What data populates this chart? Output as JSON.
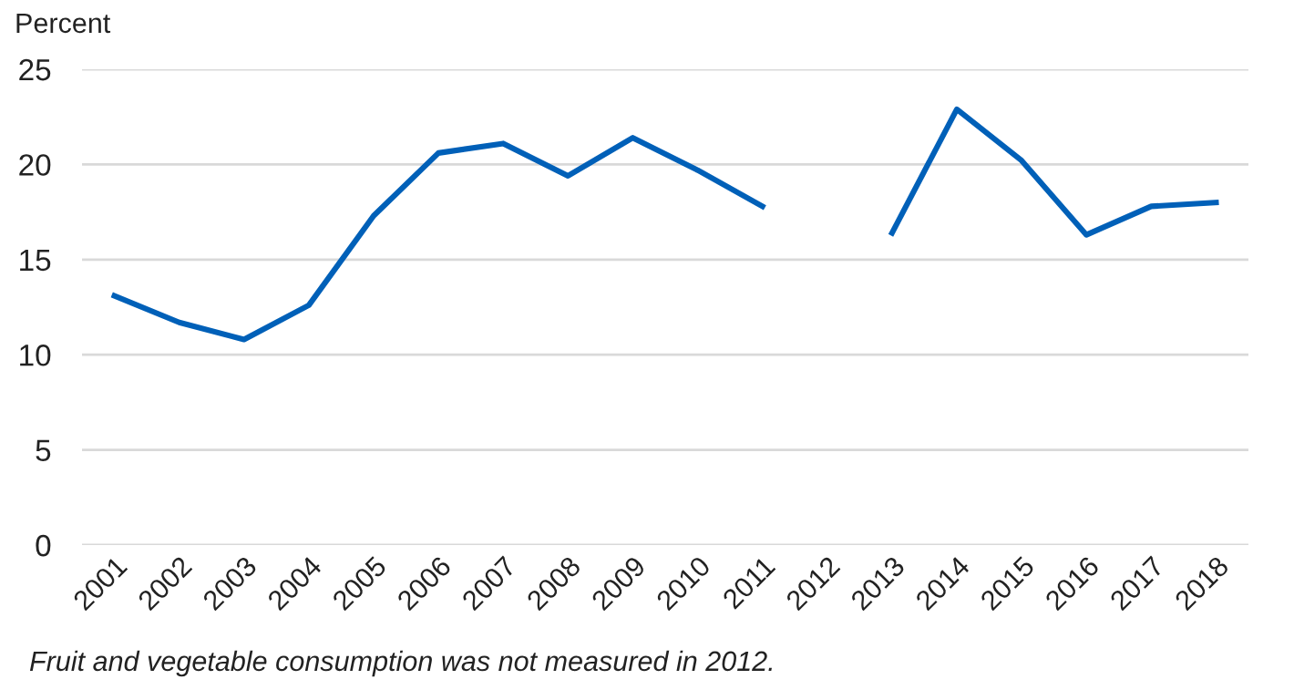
{
  "chart_data": {
    "type": "line",
    "ylabel": "Percent",
    "categories": [
      "2001",
      "2002",
      "2003",
      "2004",
      "2005",
      "2006",
      "2007",
      "2008",
      "2009",
      "2010",
      "2011",
      "2012",
      "2013",
      "2014",
      "2015",
      "2016",
      "2017",
      "2018"
    ],
    "series": [
      {
        "color": "#0060b8",
        "values": [
          13.1,
          11.7,
          10.8,
          12.6,
          17.3,
          20.6,
          21.1,
          19.4,
          21.4,
          19.7,
          17.8,
          null,
          16.4,
          22.9,
          20.2,
          16.3,
          17.8,
          18.0
        ]
      }
    ],
    "ylim": [
      0,
      25
    ],
    "yticks": [
      0,
      5,
      10,
      15,
      20,
      25
    ],
    "grid": "y",
    "legend": false,
    "marker": "none",
    "line_style": "solid",
    "annotations": [
      "Fruit and vegetable consumption was not measured in 2012."
    ]
  }
}
